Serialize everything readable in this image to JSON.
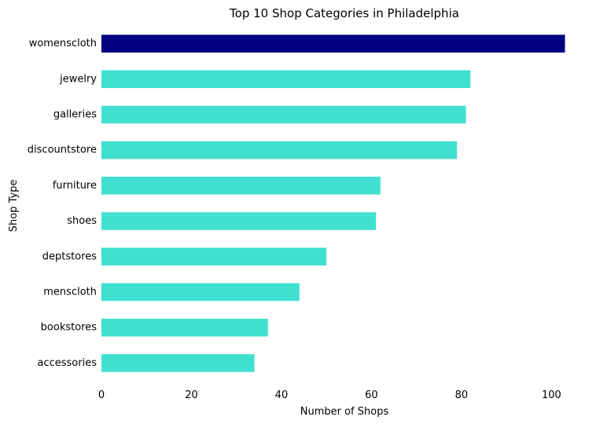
{
  "chart_data": {
    "type": "bar",
    "orientation": "horizontal",
    "title": "Top 10 Shop Categories in Philadelphia",
    "xlabel": "Number of Shops",
    "ylabel": "Shop Type",
    "categories": [
      "womenscloth",
      "jewelry",
      "galleries",
      "discountstore",
      "furniture",
      "shoes",
      "deptstores",
      "menscloth",
      "bookstores",
      "accessories"
    ],
    "values": [
      103,
      82,
      81,
      79,
      62,
      61,
      50,
      44,
      37,
      34
    ],
    "xlim": [
      0,
      105
    ],
    "xticks": [
      "0",
      "20",
      "40",
      "60",
      "80",
      "100"
    ],
    "grid": false,
    "highlight_color": "#000080",
    "bar_color": "#40e0d0"
  }
}
